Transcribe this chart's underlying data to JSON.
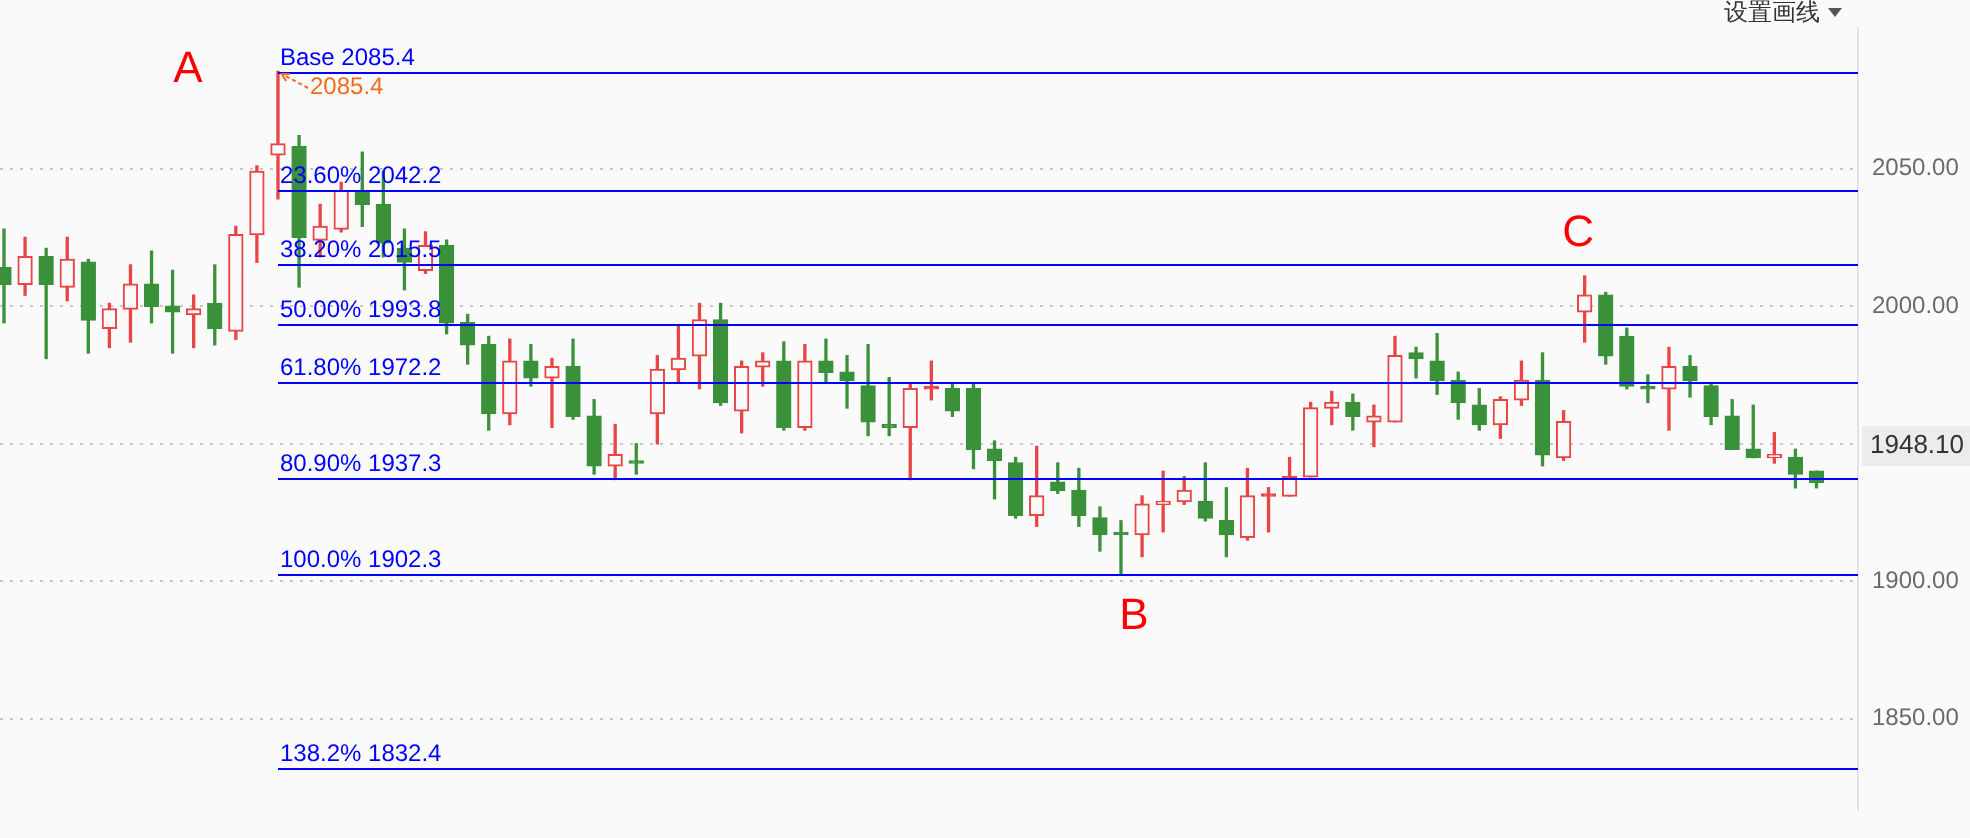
{
  "chart_data": {
    "type": "candlestick",
    "categories": [
      null,
      null,
      null,
      null,
      null,
      null,
      null,
      null,
      null,
      null,
      null,
      null,
      null,
      null,
      null,
      null,
      null,
      null,
      null,
      null,
      null,
      null,
      null,
      null,
      null,
      null,
      null,
      null,
      null,
      null,
      null,
      null,
      null,
      null,
      null,
      null,
      null,
      null,
      null,
      null,
      null,
      null,
      null,
      null,
      null,
      null,
      null,
      null,
      null,
      null,
      null,
      null,
      null,
      null,
      null,
      null,
      null,
      null,
      null,
      null,
      null,
      null,
      null,
      null,
      null,
      null,
      null,
      null,
      null,
      null,
      null,
      null,
      null,
      null,
      null,
      null,
      null,
      null,
      null,
      null,
      null,
      null,
      null,
      null,
      null,
      null,
      null
    ],
    "ohlc": [
      [
        2014,
        2028,
        1994,
        2008
      ],
      [
        2008,
        2025,
        2004,
        2018
      ],
      [
        2018,
        2021,
        1981,
        2008
      ],
      [
        2007,
        2025,
        2002,
        2017
      ],
      [
        2016,
        2017,
        1983,
        1995
      ],
      [
        1992,
        2001,
        1985,
        1999
      ],
      [
        1999,
        2015,
        1987,
        2008
      ],
      [
        2008,
        2020,
        1994,
        2000
      ],
      [
        2000,
        2013,
        1983,
        1998
      ],
      [
        1997,
        2004,
        1985,
        1999
      ],
      [
        2001,
        2015,
        1986,
        1992
      ],
      [
        1991,
        2029,
        1988,
        2026
      ],
      [
        2026,
        2051,
        2016,
        2049
      ],
      [
        2055,
        2085.4,
        2039,
        2059
      ],
      [
        2058,
        2062,
        2007,
        2025
      ],
      [
        2024,
        2037,
        2018,
        2029
      ],
      [
        2028,
        2045,
        2027,
        2042
      ],
      [
        2042,
        2056,
        2029,
        2037
      ],
      [
        2037,
        2049,
        2018,
        2023
      ],
      [
        2021,
        2028,
        2006,
        2016
      ],
      [
        2013,
        2027,
        2012,
        2022
      ],
      [
        2022,
        2024,
        1990,
        1994
      ],
      [
        1994,
        1997,
        1979,
        1986
      ],
      [
        1986,
        1989,
        1955,
        1961
      ],
      [
        1961,
        1988,
        1957,
        1980
      ],
      [
        1980,
        1986,
        1971,
        1974
      ],
      [
        1974,
        1981,
        1956,
        1978
      ],
      [
        1978,
        1988,
        1959,
        1960
      ],
      [
        1960,
        1966,
        1939,
        1942
      ],
      [
        1942,
        1957,
        1937,
        1946
      ],
      [
        1943,
        1950,
        1939,
        1943
      ],
      [
        1961,
        1982,
        1950,
        1977
      ],
      [
        1977,
        1993,
        1972,
        1981
      ],
      [
        1982,
        2001,
        1970,
        1995
      ],
      [
        1995,
        2001,
        1964,
        1965
      ],
      [
        1962,
        1980,
        1954,
        1978
      ],
      [
        1978,
        1983,
        1971,
        1980
      ],
      [
        1980,
        1987,
        1955,
        1956
      ],
      [
        1956,
        1986,
        1955,
        1980
      ],
      [
        1980,
        1988,
        1972,
        1976
      ],
      [
        1976,
        1982,
        1963,
        1973
      ],
      [
        1971,
        1986,
        1953,
        1958
      ],
      [
        1957,
        1974,
        1953,
        1956
      ],
      [
        1956,
        1972,
        1937,
        1970
      ],
      [
        1970,
        1980,
        1966,
        1970
      ],
      [
        1970,
        1972,
        1960,
        1962
      ],
      [
        1970,
        1972,
        1941,
        1948
      ],
      [
        1948,
        1951,
        1930,
        1944
      ],
      [
        1943,
        1945,
        1923,
        1924
      ],
      [
        1924,
        1949,
        1920,
        1931
      ],
      [
        1936,
        1943,
        1932,
        1933
      ],
      [
        1933,
        1941,
        1920,
        1924
      ],
      [
        1923,
        1927,
        1911,
        1917
      ],
      [
        1917,
        1922,
        1902.3,
        1917
      ],
      [
        1917,
        1931,
        1909,
        1928
      ],
      [
        1928,
        1940,
        1918,
        1929
      ],
      [
        1929,
        1938,
        1928,
        1933
      ],
      [
        1929,
        1943,
        1922,
        1923
      ],
      [
        1922,
        1934,
        1909,
        1917
      ],
      [
        1916,
        1941,
        1915,
        1931
      ],
      [
        1931,
        1934,
        1918,
        1931
      ],
      [
        1931,
        1945,
        1931,
        1938
      ],
      [
        1938,
        1965,
        1938,
        1963
      ],
      [
        1963,
        1969,
        1957,
        1965
      ],
      [
        1965,
        1968,
        1955,
        1960
      ],
      [
        1958,
        1964,
        1949,
        1960
      ],
      [
        1958,
        1989,
        1958,
        1982
      ],
      [
        1983,
        1985,
        1974,
        1981
      ],
      [
        1980,
        1990,
        1968,
        1973
      ],
      [
        1973,
        1976,
        1959,
        1965
      ],
      [
        1964,
        1970,
        1955,
        1957
      ],
      [
        1957,
        1967,
        1952,
        1966
      ],
      [
        1966,
        1980,
        1964,
        1973
      ],
      [
        1973,
        1983,
        1942,
        1946
      ],
      [
        1945,
        1962,
        1944,
        1958
      ],
      [
        1998,
        2011,
        1987,
        2004
      ],
      [
        2004,
        2005,
        1979,
        1982
      ],
      [
        1989,
        1992,
        1970,
        1971
      ],
      [
        1970,
        1975,
        1965,
        1970
      ],
      [
        1970,
        1985,
        1955,
        1978
      ],
      [
        1978,
        1982,
        1967,
        1973
      ],
      [
        1971,
        1972,
        1957,
        1960
      ],
      [
        1960,
        1966,
        1948,
        1948
      ],
      [
        1948,
        1964,
        1945,
        1945
      ],
      [
        1945,
        1954,
        1943,
        1946
      ],
      [
        1945,
        1948,
        1934,
        1939
      ],
      [
        1940,
        1940,
        1934,
        1936
      ]
    ],
    "colors": [
      "#3a913a",
      "#e84545",
      "#3a913a",
      "#e84545",
      "#3a913a",
      "#e84545",
      "#e84545",
      "#3a913a",
      "#3a913a",
      "#e84545",
      "#3a913a",
      "#e84545",
      "#e84545",
      "#e84545",
      "#3a913a",
      "#e84545",
      "#e84545",
      "#3a913a",
      "#3a913a",
      "#3a913a",
      "#e84545",
      "#3a913a",
      "#3a913a",
      "#3a913a",
      "#e84545",
      "#3a913a",
      "#e84545",
      "#3a913a",
      "#3a913a",
      "#e84545",
      "#3a913a",
      "#e84545",
      "#e84545",
      "#e84545",
      "#3a913a",
      "#e84545",
      "#e84545",
      "#3a913a",
      "#e84545",
      "#3a913a",
      "#3a913a",
      "#3a913a",
      "#3a913a",
      "#e84545",
      "#e84545",
      "#3a913a",
      "#3a913a",
      "#3a913a",
      "#3a913a",
      "#e84545",
      "#3a913a",
      "#3a913a",
      "#3a913a",
      "#3a913a",
      "#e84545",
      "#e84545",
      "#e84545",
      "#3a913a",
      "#3a913a",
      "#e84545",
      "#e84545",
      "#e84545",
      "#e84545",
      "#e84545",
      "#3a913a",
      "#e84545",
      "#e84545",
      "#3a913a",
      "#3a913a",
      "#3a913a",
      "#3a913a",
      "#e84545",
      "#e84545",
      "#3a913a",
      "#e84545",
      "#e84545",
      "#3a913a",
      "#3a913a",
      "#3a913a",
      "#e84545",
      "#3a913a",
      "#3a913a",
      "#3a913a",
      "#3a913a",
      "#e84545",
      "#3a913a",
      "#3a913a"
    ],
    "ylim": [
      1817,
      2101
    ],
    "yticks": [
      {
        "value": 1850,
        "label": "1850.00"
      },
      {
        "value": 1900,
        "label": "1900.00"
      },
      {
        "value": 1950,
        "label": null
      },
      {
        "value": 2000,
        "label": "2000.00"
      },
      {
        "value": 2050,
        "label": "2050.00"
      }
    ],
    "grid": "y",
    "tick_labels": "y",
    "ref_lines": [
      {
        "axis": "y",
        "value": 2085.4,
        "label": "Base 2085.4",
        "color": "#0000ff"
      },
      {
        "axis": "y",
        "value": 2042.2,
        "label": "23.60% 2042.2",
        "color": "#0000ff"
      },
      {
        "axis": "y",
        "value": 2015.5,
        "label": "38.20% 2015.5",
        "color": "#0000ff"
      },
      {
        "axis": "y",
        "value": 1993.8,
        "label": "50.00% 1993.8",
        "color": "#0000ff"
      },
      {
        "axis": "y",
        "value": 1972.2,
        "label": "61.80% 1972.2",
        "color": "#0000ff"
      },
      {
        "axis": "y",
        "value": 1937.3,
        "label": "80.90% 1937.3",
        "color": "#0000ff"
      },
      {
        "axis": "y",
        "value": 1902.3,
        "label": "100.0% 1902.3",
        "color": "#0000ff"
      },
      {
        "axis": "y",
        "value": 1832.4,
        "label": "138.2% 1832.4",
        "color": "#0000ff"
      }
    ],
    "annotations": [
      "A",
      {
        "text": "B",
        "y": 1902.3
      },
      {
        "text": "C",
        "y": 2011
      },
      {
        "text": "2085.4",
        "y": 2085.4
      },
      "1948.10",
      "设置画线"
    ]
  }
}
